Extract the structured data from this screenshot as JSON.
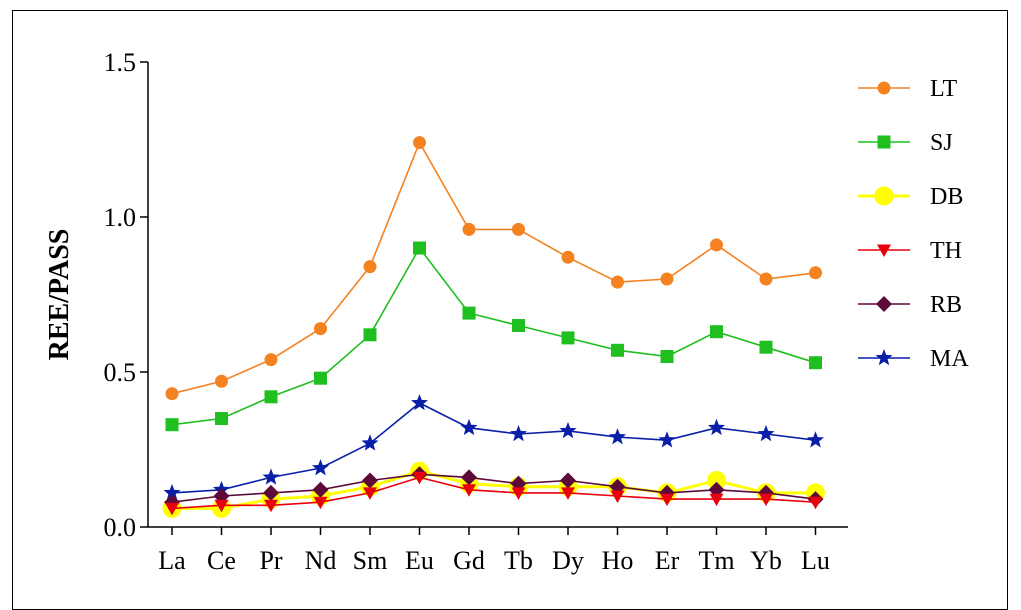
{
  "chart_data": {
    "type": "line",
    "title": "",
    "xlabel": "",
    "ylabel": "REE/PASS",
    "ylim": [
      0,
      1.5
    ],
    "yticks": [
      "0.0",
      "0.5",
      "1.0",
      "1.5"
    ],
    "grid": false,
    "legend": "right",
    "categories": [
      "La",
      "Ce",
      "Pr",
      "Nd",
      "Sm",
      "Eu",
      "Gd",
      "Tb",
      "Dy",
      "Ho",
      "Er",
      "Tm",
      "Yb",
      "Lu"
    ],
    "series": [
      {
        "name": "LT",
        "color": "#f58220",
        "marker": "circle",
        "values": [
          0.43,
          0.47,
          0.54,
          0.64,
          0.84,
          1.24,
          0.96,
          0.96,
          0.87,
          0.79,
          0.8,
          0.91,
          0.8,
          0.82
        ]
      },
      {
        "name": "SJ",
        "color": "#1fbf1f",
        "marker": "square",
        "values": [
          0.33,
          0.35,
          0.42,
          0.48,
          0.62,
          0.9,
          0.69,
          0.65,
          0.61,
          0.57,
          0.55,
          0.63,
          0.58,
          0.53
        ]
      },
      {
        "name": "DB",
        "color": "#ffff00",
        "marker": "big-circle",
        "values": [
          0.06,
          0.06,
          0.09,
          0.1,
          0.13,
          0.18,
          0.14,
          0.13,
          0.13,
          0.13,
          0.11,
          0.15,
          0.11,
          0.11
        ]
      },
      {
        "name": "TH",
        "color": "#e8000d",
        "marker": "triangle-down",
        "values": [
          0.06,
          0.07,
          0.07,
          0.08,
          0.11,
          0.16,
          0.12,
          0.11,
          0.11,
          0.1,
          0.09,
          0.09,
          0.09,
          0.08
        ]
      },
      {
        "name": "RB",
        "color": "#5c0a3a",
        "marker": "diamond",
        "values": [
          0.08,
          0.1,
          0.11,
          0.12,
          0.15,
          0.17,
          0.16,
          0.14,
          0.15,
          0.13,
          0.11,
          0.12,
          0.11,
          0.09
        ]
      },
      {
        "name": "MA",
        "color": "#0a1fa8",
        "marker": "star",
        "values": [
          0.11,
          0.12,
          0.16,
          0.19,
          0.27,
          0.4,
          0.32,
          0.3,
          0.31,
          0.29,
          0.28,
          0.32,
          0.3,
          0.28
        ]
      }
    ]
  }
}
